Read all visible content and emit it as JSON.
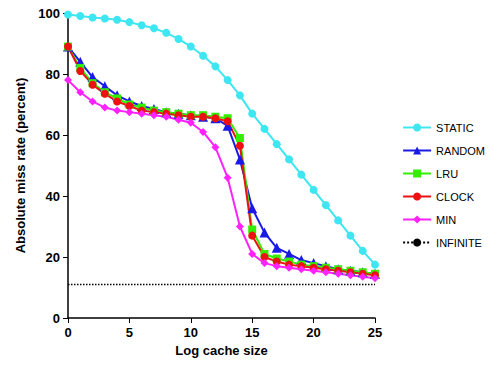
{
  "chart_data": {
    "type": "line",
    "x_label": "Log cache size",
    "y_label": "Absolute miss rate (percent)",
    "x": [
      0,
      1,
      2,
      3,
      4,
      5,
      6,
      7,
      8,
      9,
      10,
      11,
      12,
      13,
      14,
      15,
      16,
      17,
      18,
      19,
      20,
      21,
      22,
      23,
      24,
      25
    ],
    "series": [
      {
        "name": "STATIC",
        "color": "#3ee6f2",
        "marker": "circle",
        "line_style": "solid",
        "values": [
          99.5,
          99,
          98.5,
          98.2,
          97.8,
          97,
          96,
          95,
          93.5,
          91.5,
          89,
          86,
          82.5,
          78,
          73,
          67,
          62,
          57,
          52,
          47,
          42,
          37,
          32,
          27,
          22,
          17.5
        ]
      },
      {
        "name": "RANDOM",
        "color": "#1a1ae6",
        "marker": "triangle",
        "line_style": "solid",
        "values": [
          89,
          84,
          79,
          76,
          73,
          71,
          69.5,
          68.5,
          67.5,
          67,
          66.5,
          66,
          65.5,
          63,
          52,
          36,
          28,
          23,
          21,
          19,
          18,
          17,
          16,
          15.5,
          15,
          14.5
        ]
      },
      {
        "name": "LRU",
        "color": "#33ee00",
        "marker": "square",
        "line_style": "solid",
        "values": [
          89,
          82,
          77,
          74,
          72,
          70,
          69,
          68,
          67.5,
          67,
          66.5,
          66.5,
          66,
          65.5,
          59,
          29,
          21,
          19.5,
          18.5,
          17.5,
          17,
          16.5,
          16,
          15.5,
          15,
          14.5
        ]
      },
      {
        "name": "CLOCK",
        "color": "#ee1111",
        "marker": "circle",
        "line_style": "solid",
        "values": [
          89,
          81,
          76.5,
          73.5,
          71,
          69.5,
          68,
          67.5,
          67,
          66.5,
          66,
          66,
          65.5,
          64.5,
          56.5,
          27,
          20,
          18.5,
          17.5,
          17,
          16.5,
          16,
          15.5,
          15,
          14.5,
          14
        ]
      },
      {
        "name": "MIN",
        "color": "#ff22ff",
        "marker": "diamond",
        "line_style": "solid",
        "values": [
          78,
          74,
          71,
          69,
          68,
          67.5,
          67,
          66.5,
          66,
          65,
          64,
          61,
          56,
          46,
          30,
          21,
          18,
          17,
          16.5,
          16,
          15.5,
          15,
          14.5,
          14,
          13.5,
          13
        ]
      },
      {
        "name": "INFINITE",
        "color": "#000000",
        "marker": "none",
        "line_style": "dotted",
        "values": [
          11,
          11,
          11,
          11,
          11,
          11,
          11,
          11,
          11,
          11,
          11,
          11,
          11,
          11,
          11,
          11,
          11,
          11,
          11,
          11,
          11,
          11,
          11,
          11,
          11,
          11
        ]
      }
    ],
    "xlim": [
      0,
      25
    ],
    "xticks": [
      0,
      5,
      10,
      15,
      20,
      25
    ],
    "ylim": [
      0,
      100
    ],
    "yticks": [
      0,
      20,
      40,
      60,
      80,
      100
    ],
    "grid": false,
    "legend": "right"
  }
}
